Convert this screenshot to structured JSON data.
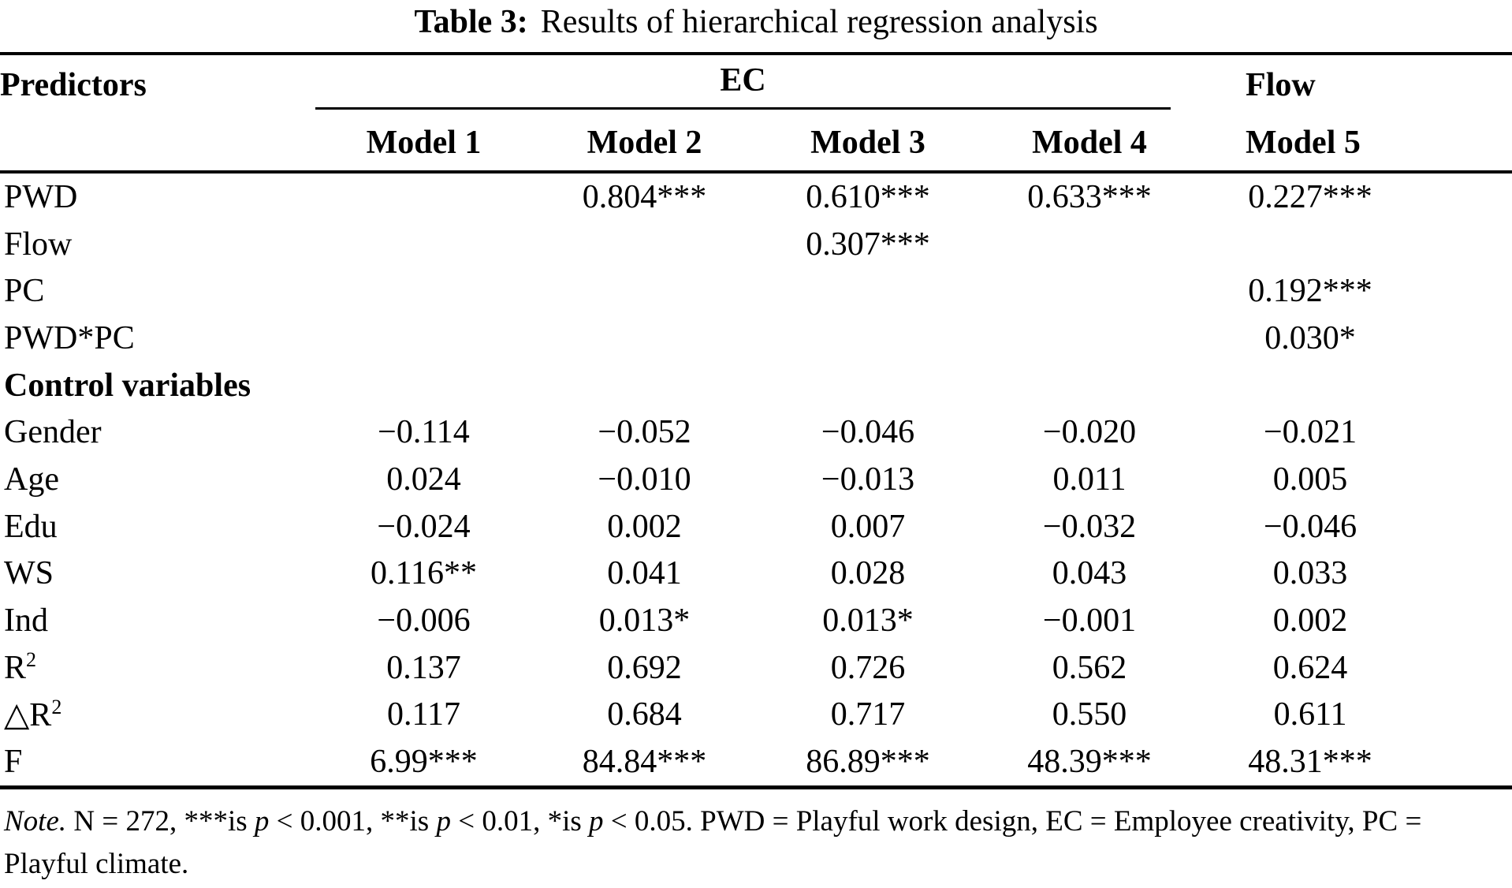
{
  "title": {
    "prefix": "Table 3:",
    "text": "Results of hierarchical regression analysis"
  },
  "table": {
    "col_predictors": "Predictors",
    "groups": {
      "ec": "EC",
      "flow": "Flow"
    },
    "model_headers": [
      "Model 1",
      "Model 2",
      "Model 3",
      "Model 4",
      "Model 5"
    ],
    "rows": [
      {
        "label": "PWD",
        "values": [
          "",
          "0.804***",
          "0.610***",
          "0.633***",
          "0.227***"
        ]
      },
      {
        "label": "Flow",
        "values": [
          "",
          "",
          "0.307***",
          "",
          ""
        ]
      },
      {
        "label": "PC",
        "values": [
          "",
          "",
          "",
          "",
          "0.192***"
        ]
      },
      {
        "label": "PWD*PC",
        "values": [
          "",
          "",
          "",
          "",
          "0.030*"
        ]
      },
      {
        "label": "Control variables",
        "bold": true,
        "values": [
          "",
          "",
          "",
          "",
          ""
        ]
      },
      {
        "label": "Gender",
        "values": [
          "−0.114",
          "−0.052",
          "−0.046",
          "−0.020",
          "−0.021"
        ]
      },
      {
        "label": "Age",
        "values": [
          "0.024",
          "−0.010",
          "−0.013",
          "0.011",
          "0.005"
        ]
      },
      {
        "label": "Edu",
        "values": [
          "−0.024",
          "0.002",
          "0.007",
          "−0.032",
          "−0.046"
        ]
      },
      {
        "label": "WS",
        "values": [
          "0.116**",
          "0.041",
          "0.028",
          "0.043",
          "0.033"
        ]
      },
      {
        "label": "Ind",
        "values": [
          "−0.006",
          "0.013*",
          "0.013*",
          "−0.001",
          "0.002"
        ]
      },
      {
        "label": "R",
        "sup": "2",
        "values": [
          "0.137",
          "0.692",
          "0.726",
          "0.562",
          "0.624"
        ]
      },
      {
        "label": "△R",
        "sup": "2",
        "values": [
          "0.117",
          "0.684",
          "0.717",
          "0.550",
          "0.611"
        ]
      },
      {
        "label": "F",
        "values": [
          "6.99***",
          "84.84***",
          "86.89***",
          "48.39***",
          "48.31***"
        ]
      }
    ]
  },
  "note": {
    "segments": [
      {
        "text": "Note.",
        "italic": true
      },
      {
        "text": " N = 272, ***is "
      },
      {
        "text": "p",
        "italic": true
      },
      {
        "text": " < 0.001, **is "
      },
      {
        "text": "p",
        "italic": true
      },
      {
        "text": " < 0.01, *is "
      },
      {
        "text": "p",
        "italic": true
      },
      {
        "text": " < 0.05. PWD = Playful work design, EC = Employee creativity, PC ="
      },
      {
        "text": "Playful climate."
      }
    ]
  }
}
